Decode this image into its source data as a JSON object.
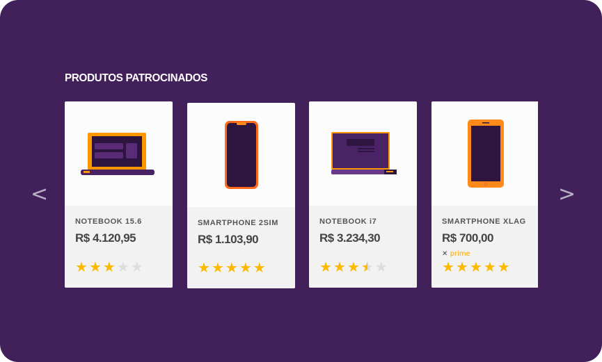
{
  "section_title": "PRODUTOS PATROCINADOS",
  "colors": {
    "background": "#42215a",
    "accent": "#f6a800",
    "star": "#fbb900"
  },
  "nav": {
    "prev_icon": "chevron-left-icon",
    "next_icon": "chevron-right-icon",
    "prev": "<",
    "next": ">"
  },
  "products": [
    {
      "name": "NOTEBOOK 15.6",
      "price": "R$ 4.120,95",
      "rating": 3,
      "image": "laptop"
    },
    {
      "name": "SMARTPHONE 2SIM",
      "price": "R$ 1.103,90",
      "rating": 5,
      "image": "smartphone"
    },
    {
      "name": "NOTEBOOK i7",
      "price": "R$ 3.234,30",
      "rating": 3.5,
      "image": "laptop"
    },
    {
      "name": "SMARTPHONE XLAG",
      "price": "R$ 700,00",
      "rating": 5,
      "image": "smartphone",
      "badge": {
        "x": "✕",
        "label": "prime"
      }
    }
  ]
}
